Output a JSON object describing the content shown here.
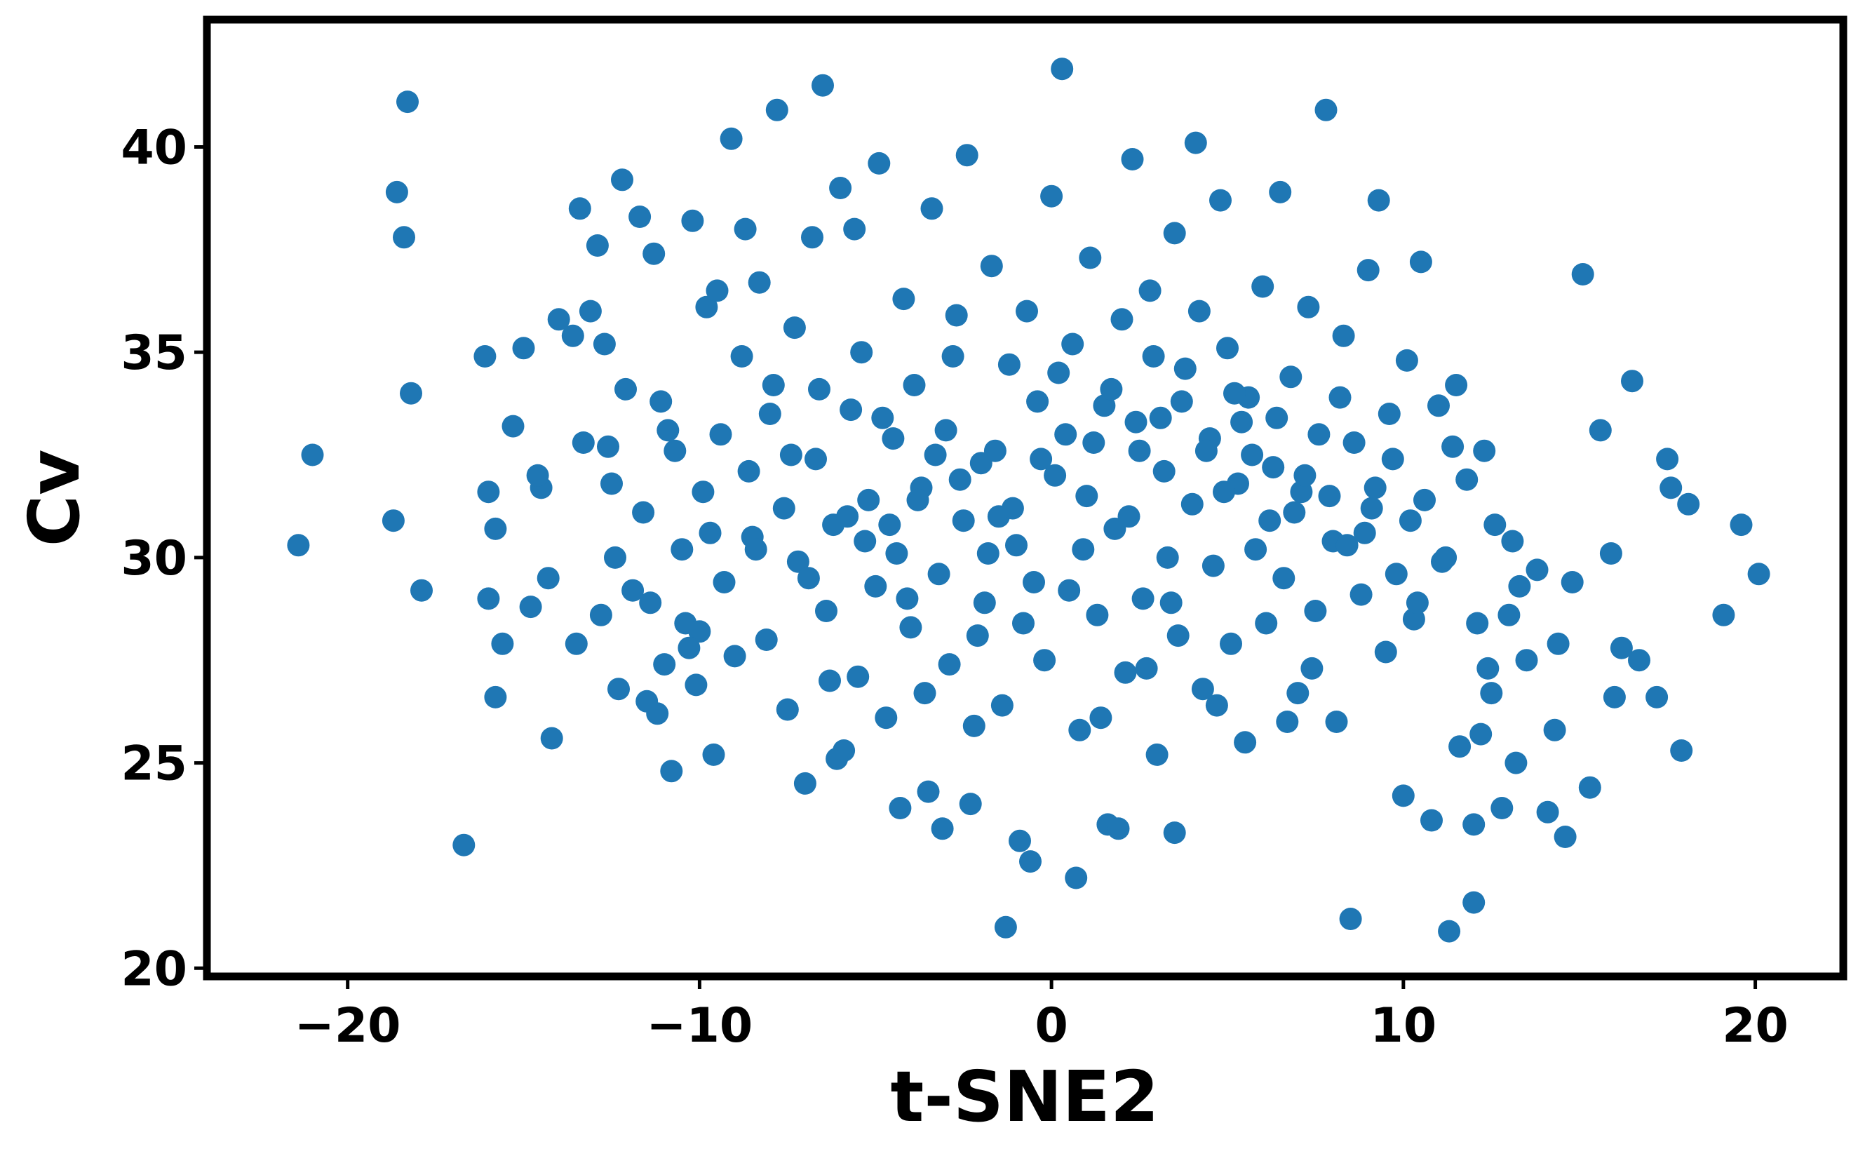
{
  "colors": {
    "points": "#1f77b4",
    "frame": "#000000",
    "background": "#ffffff"
  },
  "chart_data": {
    "type": "scatter",
    "title": "",
    "xlabel": "t-SNE2",
    "ylabel": "Cv",
    "xlim": [
      -24,
      22.5
    ],
    "ylim": [
      19.8,
      43.1
    ],
    "xticks": [
      -20,
      -10,
      0,
      10,
      20
    ],
    "xtick_labels": [
      "−20",
      "−10",
      "0",
      "10",
      "20"
    ],
    "yticks": [
      20,
      25,
      30,
      35,
      40
    ],
    "ytick_labels": [
      "20",
      "25",
      "30",
      "35",
      "40"
    ],
    "grid": false,
    "legend": "none",
    "series": [
      {
        "points": [
          [
            -21.4,
            30.3
          ],
          [
            -21.0,
            32.5
          ],
          [
            -18.7,
            30.9
          ],
          [
            -18.6,
            38.9
          ],
          [
            -18.4,
            37.8
          ],
          [
            -18.3,
            41.1
          ],
          [
            -18.2,
            34.0
          ],
          [
            -17.9,
            29.2
          ],
          [
            -16.7,
            23.0
          ],
          [
            -16.1,
            34.9
          ],
          [
            -16.0,
            29.0
          ],
          [
            -15.8,
            30.7
          ],
          [
            -15.8,
            26.6
          ],
          [
            -15.6,
            27.9
          ],
          [
            -15.3,
            33.2
          ],
          [
            -14.8,
            28.8
          ],
          [
            -14.5,
            31.7
          ],
          [
            -14.3,
            29.5
          ],
          [
            -14.2,
            25.6
          ],
          [
            -14.0,
            35.8
          ],
          [
            -13.6,
            35.4
          ],
          [
            -13.4,
            38.5
          ],
          [
            -13.3,
            32.8
          ],
          [
            -13.1,
            36.0
          ],
          [
            -12.9,
            37.6
          ],
          [
            -12.8,
            28.6
          ],
          [
            -12.6,
            32.7
          ],
          [
            -12.4,
            30.0
          ],
          [
            -12.3,
            26.8
          ],
          [
            -12.2,
            39.2
          ],
          [
            -12.1,
            34.1
          ],
          [
            -11.9,
            29.2
          ],
          [
            -11.7,
            38.3
          ],
          [
            -11.6,
            31.1
          ],
          [
            -11.4,
            28.9
          ],
          [
            -11.3,
            37.4
          ],
          [
            -11.1,
            33.8
          ],
          [
            -11.0,
            27.4
          ],
          [
            -10.8,
            24.8
          ],
          [
            -10.7,
            32.6
          ],
          [
            -10.5,
            30.2
          ],
          [
            -10.4,
            28.4
          ],
          [
            -10.2,
            38.2
          ],
          [
            -10.1,
            26.9
          ],
          [
            -9.9,
            31.6
          ],
          [
            -9.8,
            36.1
          ],
          [
            -9.6,
            25.2
          ],
          [
            -9.4,
            33.0
          ],
          [
            -9.3,
            29.4
          ],
          [
            -9.1,
            40.2
          ],
          [
            -9.0,
            27.6
          ],
          [
            -8.8,
            34.9
          ],
          [
            -8.6,
            32.1
          ],
          [
            -8.5,
            30.5
          ],
          [
            -8.3,
            36.7
          ],
          [
            -8.1,
            28.0
          ],
          [
            -8.0,
            33.5
          ],
          [
            -7.8,
            40.9
          ],
          [
            -7.6,
            31.2
          ],
          [
            -7.5,
            26.3
          ],
          [
            -7.3,
            35.6
          ],
          [
            -7.2,
            29.9
          ],
          [
            -7.0,
            24.5
          ],
          [
            -6.8,
            37.8
          ],
          [
            -6.7,
            32.4
          ],
          [
            -6.5,
            41.5
          ],
          [
            -6.4,
            28.7
          ],
          [
            -6.2,
            30.8
          ],
          [
            -6.0,
            39.0
          ],
          [
            -5.9,
            25.3
          ],
          [
            -5.7,
            33.6
          ],
          [
            -5.5,
            27.1
          ],
          [
            -5.4,
            35.0
          ],
          [
            -5.2,
            31.4
          ],
          [
            -5.0,
            29.3
          ],
          [
            -4.9,
            39.6
          ],
          [
            -4.7,
            26.1
          ],
          [
            -4.5,
            32.9
          ],
          [
            -4.4,
            30.1
          ],
          [
            -4.2,
            36.3
          ],
          [
            -4.0,
            28.3
          ],
          [
            -3.9,
            34.2
          ],
          [
            -3.7,
            31.7
          ],
          [
            -3.5,
            24.3
          ],
          [
            -3.4,
            38.5
          ],
          [
            -3.2,
            29.6
          ],
          [
            -3.0,
            33.1
          ],
          [
            -2.9,
            27.4
          ],
          [
            -2.7,
            35.9
          ],
          [
            -2.5,
            30.9
          ],
          [
            -2.4,
            39.8
          ],
          [
            -2.2,
            25.9
          ],
          [
            -2.0,
            32.3
          ],
          [
            -1.9,
            28.9
          ],
          [
            -1.7,
            37.1
          ],
          [
            -1.5,
            31.0
          ],
          [
            -1.4,
            26.4
          ],
          [
            -1.2,
            34.7
          ],
          [
            -1.0,
            30.3
          ],
          [
            -0.9,
            23.1
          ],
          [
            -0.7,
            36.0
          ],
          [
            -0.5,
            29.4
          ],
          [
            -0.4,
            33.8
          ],
          [
            -0.2,
            27.5
          ],
          [
            0.0,
            38.8
          ],
          [
            0.1,
            32.0
          ],
          [
            0.3,
            41.9
          ],
          [
            0.5,
            29.2
          ],
          [
            0.6,
            35.2
          ],
          [
            0.8,
            25.8
          ],
          [
            1.0,
            31.5
          ],
          [
            1.1,
            37.3
          ],
          [
            1.3,
            28.6
          ],
          [
            1.5,
            33.7
          ],
          [
            1.6,
            23.5
          ],
          [
            1.8,
            30.7
          ],
          [
            2.0,
            35.8
          ],
          [
            2.1,
            27.2
          ],
          [
            2.3,
            39.7
          ],
          [
            2.5,
            32.6
          ],
          [
            2.6,
            29.0
          ],
          [
            2.8,
            36.5
          ],
          [
            3.0,
            25.2
          ],
          [
            3.1,
            33.4
          ],
          [
            3.3,
            30.0
          ],
          [
            3.5,
            37.9
          ],
          [
            3.6,
            28.1
          ],
          [
            3.8,
            34.6
          ],
          [
            4.0,
            31.3
          ],
          [
            4.1,
            40.1
          ],
          [
            4.3,
            26.8
          ],
          [
            4.5,
            32.9
          ],
          [
            4.6,
            29.8
          ],
          [
            4.8,
            38.7
          ],
          [
            5.0,
            35.1
          ],
          [
            5.1,
            27.9
          ],
          [
            5.3,
            31.8
          ],
          [
            5.5,
            25.5
          ],
          [
            5.6,
            33.9
          ],
          [
            5.8,
            30.2
          ],
          [
            6.0,
            36.6
          ],
          [
            6.1,
            28.4
          ],
          [
            6.3,
            32.2
          ],
          [
            6.5,
            38.9
          ],
          [
            6.6,
            29.5
          ],
          [
            6.8,
            34.4
          ],
          [
            7.0,
            26.7
          ],
          [
            7.1,
            31.6
          ],
          [
            7.3,
            36.1
          ],
          [
            7.5,
            28.7
          ],
          [
            7.6,
            33.0
          ],
          [
            7.8,
            40.9
          ],
          [
            8.0,
            30.4
          ],
          [
            8.1,
            26.0
          ],
          [
            8.3,
            35.4
          ],
          [
            8.5,
            21.2
          ],
          [
            8.6,
            32.8
          ],
          [
            8.8,
            29.1
          ],
          [
            9.0,
            37.0
          ],
          [
            9.1,
            31.2
          ],
          [
            9.3,
            38.7
          ],
          [
            9.5,
            27.7
          ],
          [
            9.6,
            33.5
          ],
          [
            9.8,
            29.6
          ],
          [
            10.0,
            24.2
          ],
          [
            10.1,
            34.8
          ],
          [
            10.3,
            28.5
          ],
          [
            10.5,
            37.2
          ],
          [
            10.6,
            31.4
          ],
          [
            10.8,
            23.6
          ],
          [
            11.0,
            33.7
          ],
          [
            11.1,
            29.9
          ],
          [
            11.3,
            20.9
          ],
          [
            11.5,
            34.2
          ],
          [
            11.6,
            25.4
          ],
          [
            11.8,
            31.9
          ],
          [
            12.0,
            23.5
          ],
          [
            12.1,
            28.4
          ],
          [
            12.3,
            32.6
          ],
          [
            12.5,
            26.7
          ],
          [
            12.6,
            30.8
          ],
          [
            12.8,
            23.9
          ],
          [
            13.0,
            28.6
          ],
          [
            13.1,
            30.4
          ],
          [
            13.3,
            29.3
          ],
          [
            13.5,
            27.5
          ],
          [
            13.8,
            29.7
          ],
          [
            14.1,
            23.8
          ],
          [
            14.4,
            27.9
          ],
          [
            14.6,
            23.2
          ],
          [
            14.8,
            29.4
          ],
          [
            15.3,
            24.4
          ],
          [
            15.6,
            33.1
          ],
          [
            15.9,
            30.1
          ],
          [
            16.2,
            27.8
          ],
          [
            16.5,
            34.3
          ],
          [
            16.7,
            27.5
          ],
          [
            17.2,
            26.6
          ],
          [
            17.6,
            31.7
          ],
          [
            17.9,
            25.3
          ],
          [
            18.1,
            31.3
          ],
          [
            19.1,
            28.6
          ],
          [
            19.6,
            30.8
          ],
          [
            20.1,
            29.6
          ],
          [
            -13.5,
            27.9
          ],
          [
            -12.7,
            35.2
          ],
          [
            -11.2,
            26.2
          ],
          [
            -10.0,
            28.2
          ],
          [
            -9.5,
            36.5
          ],
          [
            -8.7,
            38.0
          ],
          [
            -7.9,
            34.2
          ],
          [
            -6.9,
            29.5
          ],
          [
            -6.3,
            27.0
          ],
          [
            -5.6,
            38.0
          ],
          [
            -4.8,
            33.4
          ],
          [
            -4.1,
            29.0
          ],
          [
            -3.6,
            26.7
          ],
          [
            -2.8,
            34.9
          ],
          [
            -2.1,
            28.1
          ],
          [
            -1.6,
            32.6
          ],
          [
            -0.8,
            28.4
          ],
          [
            0.2,
            34.5
          ],
          [
            0.9,
            30.2
          ],
          [
            1.4,
            26.1
          ],
          [
            2.2,
            31.0
          ],
          [
            2.9,
            34.9
          ],
          [
            3.4,
            28.9
          ],
          [
            4.2,
            36.0
          ],
          [
            4.9,
            31.6
          ],
          [
            5.4,
            33.3
          ],
          [
            6.2,
            30.9
          ],
          [
            6.9,
            31.1
          ],
          [
            7.4,
            27.3
          ],
          [
            8.2,
            33.9
          ],
          [
            8.9,
            30.6
          ],
          [
            9.7,
            32.4
          ],
          [
            10.4,
            28.9
          ],
          [
            11.2,
            30.0
          ],
          [
            12.2,
            25.7
          ],
          [
            13.2,
            25.0
          ],
          [
            14.3,
            25.8
          ],
          [
            15.1,
            36.9
          ],
          [
            16.0,
            26.6
          ],
          [
            17.5,
            32.4
          ],
          [
            -16.0,
            31.6
          ],
          [
            -15.0,
            35.1
          ],
          [
            -14.6,
            32.0
          ],
          [
            -12.5,
            31.8
          ],
          [
            -11.5,
            26.5
          ],
          [
            -10.9,
            33.1
          ],
          [
            -10.3,
            27.8
          ],
          [
            -9.7,
            30.6
          ],
          [
            -8.4,
            30.2
          ],
          [
            -7.4,
            32.5
          ],
          [
            -6.6,
            34.1
          ],
          [
            -5.8,
            31.0
          ],
          [
            -5.3,
            30.4
          ],
          [
            -4.6,
            30.8
          ],
          [
            -3.8,
            31.4
          ],
          [
            -3.3,
            32.5
          ],
          [
            -2.6,
            31.9
          ],
          [
            -1.8,
            30.1
          ],
          [
            -1.1,
            31.2
          ],
          [
            -0.3,
            32.4
          ],
          [
            0.4,
            33.0
          ],
          [
            1.2,
            32.8
          ],
          [
            1.7,
            34.1
          ],
          [
            2.4,
            33.3
          ],
          [
            3.2,
            32.1
          ],
          [
            3.7,
            33.8
          ],
          [
            4.4,
            32.6
          ],
          [
            5.2,
            34.0
          ],
          [
            5.7,
            32.5
          ],
          [
            6.4,
            33.4
          ],
          [
            7.2,
            32.0
          ],
          [
            7.9,
            31.5
          ],
          [
            8.4,
            30.3
          ],
          [
            9.2,
            31.7
          ],
          [
            10.2,
            30.9
          ],
          [
            11.4,
            32.7
          ],
          [
            12.4,
            27.3
          ],
          [
            -6.1,
            25.1
          ],
          [
            -4.3,
            23.9
          ],
          [
            -2.3,
            24.0
          ],
          [
            -0.6,
            22.6
          ],
          [
            0.7,
            22.2
          ],
          [
            1.9,
            23.4
          ],
          [
            3.5,
            23.3
          ],
          [
            4.7,
            26.4
          ],
          [
            6.7,
            26.0
          ],
          [
            -3.1,
            23.4
          ],
          [
            2.7,
            27.3
          ],
          [
            -1.3,
            21.0
          ],
          [
            12.0,
            21.6
          ]
        ]
      }
    ]
  }
}
